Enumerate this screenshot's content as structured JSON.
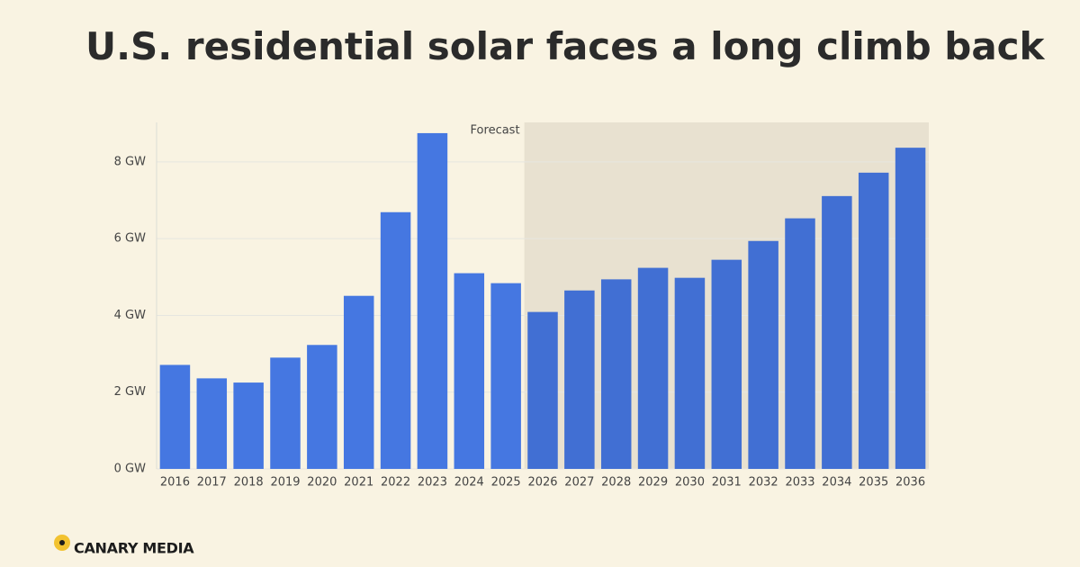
{
  "chart_data": {
    "type": "bar",
    "title": "U.S. residential solar faces a long climb back",
    "categories": [
      "2016",
      "2017",
      "2018",
      "2019",
      "2020",
      "2021",
      "2022",
      "2023",
      "2024",
      "2025",
      "2026",
      "2027",
      "2028",
      "2029",
      "2030",
      "2031",
      "2032",
      "2033",
      "2034",
      "2035",
      "2036"
    ],
    "values": [
      2.71,
      2.36,
      2.25,
      2.9,
      3.23,
      4.51,
      6.69,
      8.75,
      5.1,
      4.84,
      4.09,
      4.65,
      4.94,
      5.24,
      4.98,
      5.45,
      5.94,
      6.53,
      7.11,
      7.72,
      8.37
    ],
    "color": "#4577e1",
    "forecast_color": "#416fd3",
    "ylim": [
      0,
      9.03
    ],
    "yticks": [
      {
        "value": 0,
        "label": "0 GW"
      },
      {
        "value": 2,
        "label": "2 GW"
      },
      {
        "value": 4,
        "label": "4 GW"
      },
      {
        "value": 6,
        "label": "6 GW"
      },
      {
        "value": 8,
        "label": "8 GW"
      }
    ],
    "grid": true,
    "forecast": {
      "label": "Forecast",
      "from": "2026"
    },
    "source": "CANARY MEDIA"
  }
}
